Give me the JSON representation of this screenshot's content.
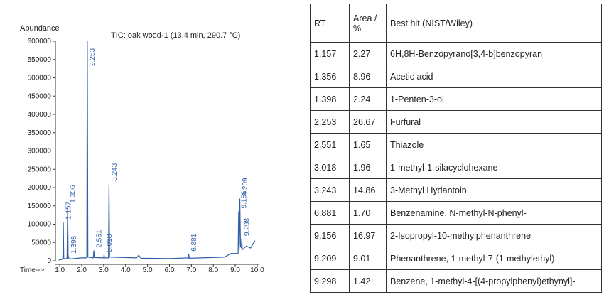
{
  "chart_data": {
    "type": "line",
    "title": "TIC: oak wood-1 (13.4 min, 290.7 °C)",
    "ylabel": "Abundance",
    "xlabel": "Time-->",
    "color": "#2f5fa8",
    "x": [
      0.95,
      1.1,
      1.14,
      1.157,
      1.18,
      1.33,
      1.356,
      1.38,
      1.398,
      1.42,
      2.0,
      2.23,
      2.253,
      2.28,
      2.53,
      2.551,
      2.58,
      3.0,
      3.018,
      3.04,
      3.22,
      3.243,
      3.27,
      4.5,
      4.6,
      4.7,
      6.0,
      6.86,
      6.881,
      6.9,
      8.5,
      8.8,
      9.13,
      9.156,
      9.18,
      9.209,
      9.24,
      9.28,
      9.298,
      9.32,
      9.5,
      9.7,
      9.9
    ],
    "values": [
      2000,
      4000,
      8000,
      105000,
      6000,
      6000,
      150000,
      8000,
      12000,
      5000,
      8000,
      8000,
      600000,
      10000,
      8000,
      28000,
      9000,
      8000,
      16000,
      8000,
      8000,
      210000,
      10000,
      8000,
      15000,
      7000,
      6000,
      8000,
      18000,
      7000,
      10000,
      20000,
      20000,
      135000,
      30000,
      170000,
      40000,
      35000,
      60000,
      30000,
      40000,
      35000,
      55000
    ],
    "peak_labels": [
      1.157,
      1.356,
      1.398,
      2.253,
      2.551,
      3.018,
      3.243,
      6.881,
      9.156,
      9.209,
      9.298
    ],
    "xlim": [
      0.8,
      10.1
    ],
    "xticks": [
      {
        "value": 1,
        "label": "1.0"
      },
      {
        "value": 2,
        "label": "2.0"
      },
      {
        "value": 3,
        "label": "3.0"
      },
      {
        "value": 4,
        "label": "4.0"
      },
      {
        "value": 5,
        "label": "5.0"
      },
      {
        "value": 6,
        "label": "6.0"
      },
      {
        "value": 7,
        "label": "7.0"
      },
      {
        "value": 8,
        "label": "8.0"
      },
      {
        "value": 9,
        "label": "9.0"
      },
      {
        "value": 10,
        "label": "10.0"
      }
    ],
    "ylim": [
      0,
      600000
    ],
    "yticks": [
      0,
      50000,
      100000,
      150000,
      200000,
      250000,
      300000,
      350000,
      400000,
      450000,
      500000,
      550000,
      600000
    ]
  },
  "table": {
    "header": [
      "RT",
      "Area / %",
      "Best hit (NIST/Wiley)"
    ],
    "rows": [
      [
        "1.157",
        "2.27",
        "6H,8H-Benzopyrano[3,4-b]benzopyran"
      ],
      [
        "1.356",
        "8.96",
        "Acetic acid"
      ],
      [
        "1.398",
        "2.24",
        "1-Penten-3-ol"
      ],
      [
        "2.253",
        "26.67",
        "Furfural"
      ],
      [
        "2.551",
        "1.65",
        "Thiazole"
      ],
      [
        "3.018",
        "1.96",
        "1-methyl-1-silacyclohexane"
      ],
      [
        "3.243",
        "14.86",
        "3-Methyl Hydantoin"
      ],
      [
        "6.881",
        "1.70",
        "Benzenamine, N-methyl-N-phenyl-"
      ],
      [
        "9.156",
        "16.97",
        "2-Isopropyl-10-methylphenanthrene"
      ],
      [
        "9.209",
        "9.01",
        "Phenanthrene, 1-methyl-7-(1-methylethyl)-"
      ],
      [
        "9.298",
        "1.42",
        "Benzene, 1-methyl-4-[(4-propylphenyl)ethynyl]-"
      ]
    ]
  }
}
